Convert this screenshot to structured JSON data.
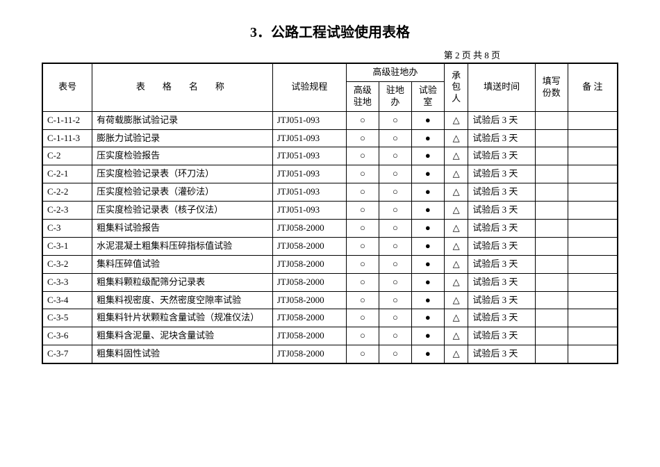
{
  "title": "3．公路工程试验使用表格",
  "page_info": "第 2 页 共 8 页",
  "header": {
    "code": "表号",
    "name": "表　格　名　称",
    "spec": "试验规程",
    "group": "高级驻地办",
    "sub1": "高级驻地",
    "sub2": "驻地办",
    "sub3": "试验室",
    "contractor": "承包人",
    "send_time": "填送时间",
    "copies": "填写份数",
    "notes": "备 注"
  },
  "symbols": {
    "circle": "○",
    "dot": "●",
    "triangle": "△"
  },
  "rows": [
    {
      "code": "C-1-11-2",
      "name": "有荷载膨胀试验记录",
      "spec": "JTJ051-093",
      "s1": "○",
      "s2": "○",
      "s3": "●",
      "cb": "△",
      "send": "试验后 3 天",
      "copies": "",
      "notes": ""
    },
    {
      "code": "C-1-11-3",
      "name": "膨胀力试验记录",
      "spec": "JTJ051-093",
      "s1": "○",
      "s2": "○",
      "s3": "●",
      "cb": "△",
      "send": "试验后 3 天",
      "copies": "",
      "notes": ""
    },
    {
      "code": "C-2",
      "name": "压实度检验报告",
      "spec": "JTJ051-093",
      "s1": "○",
      "s2": "○",
      "s3": "●",
      "cb": "△",
      "send": "试验后 3 天",
      "copies": "",
      "notes": ""
    },
    {
      "code": "C-2-1",
      "name": "压实度检验记录表（环刀法）",
      "spec": "JTJ051-093",
      "s1": "○",
      "s2": "○",
      "s3": "●",
      "cb": "△",
      "send": "试验后 3 天",
      "copies": "",
      "notes": ""
    },
    {
      "code": "C-2-2",
      "name": "压实度检验记录表（灌砂法）",
      "spec": "JTJ051-093",
      "s1": "○",
      "s2": "○",
      "s3": "●",
      "cb": "△",
      "send": "试验后 3 天",
      "copies": "",
      "notes": ""
    },
    {
      "code": "C-2-3",
      "name": "压实度检验记录表（核子仪法）",
      "spec": "JTJ051-093",
      "s1": "○",
      "s2": "○",
      "s3": "●",
      "cb": "△",
      "send": "试验后 3 天",
      "copies": "",
      "notes": ""
    },
    {
      "code": "C-3",
      "name": "粗集料试验报告",
      "spec": "JTJ058-2000",
      "s1": "○",
      "s2": "○",
      "s3": "●",
      "cb": "△",
      "send": "试验后 3 天",
      "copies": "",
      "notes": ""
    },
    {
      "code": "C-3-1",
      "name": "水泥混凝土粗集料压碎指标值试验",
      "spec": "JTJ058-2000",
      "s1": "○",
      "s2": "○",
      "s3": "●",
      "cb": "△",
      "send": "试验后 3 天",
      "copies": "",
      "notes": ""
    },
    {
      "code": "C-3-2",
      "name": "集料压碎值试验",
      "spec": "JTJ058-2000",
      "s1": "○",
      "s2": "○",
      "s3": "●",
      "cb": "△",
      "send": "试验后 3 天",
      "copies": "",
      "notes": ""
    },
    {
      "code": "C-3-3",
      "name": "粗集料颗粒级配筛分记录表",
      "spec": "JTJ058-2000",
      "s1": "○",
      "s2": "○",
      "s3": "●",
      "cb": "△",
      "send": "试验后 3 天",
      "copies": "",
      "notes": ""
    },
    {
      "code": "C-3-4",
      "name": "粗集料视密度、天然密度空隙率试验",
      "spec": "JTJ058-2000",
      "s1": "○",
      "s2": "○",
      "s3": "●",
      "cb": "△",
      "send": "试验后 3 天",
      "copies": "",
      "notes": ""
    },
    {
      "code": "C-3-5",
      "name": "粗集料针片状颗粒含量试验（规准仪法）",
      "spec": "JTJ058-2000",
      "s1": "○",
      "s2": "○",
      "s3": "●",
      "cb": "△",
      "send": "试验后 3 天",
      "copies": "",
      "notes": ""
    },
    {
      "code": "C-3-6",
      "name": "粗集料含泥量、泥块含量试验",
      "spec": "JTJ058-2000",
      "s1": "○",
      "s2": "○",
      "s3": "●",
      "cb": "△",
      "send": "试验后 3 天",
      "copies": "",
      "notes": ""
    },
    {
      "code": "C-3-7",
      "name": "粗集料固性试验",
      "spec": "JTJ058-2000",
      "s1": "○",
      "s2": "○",
      "s3": "●",
      "cb": "△",
      "send": "试验后 3 天",
      "copies": "",
      "notes": ""
    }
  ],
  "style": {
    "background_color": "#ffffff",
    "border_color": "#000000",
    "font_family": "SimSun",
    "title_fontsize": 20,
    "body_fontsize": 13
  }
}
